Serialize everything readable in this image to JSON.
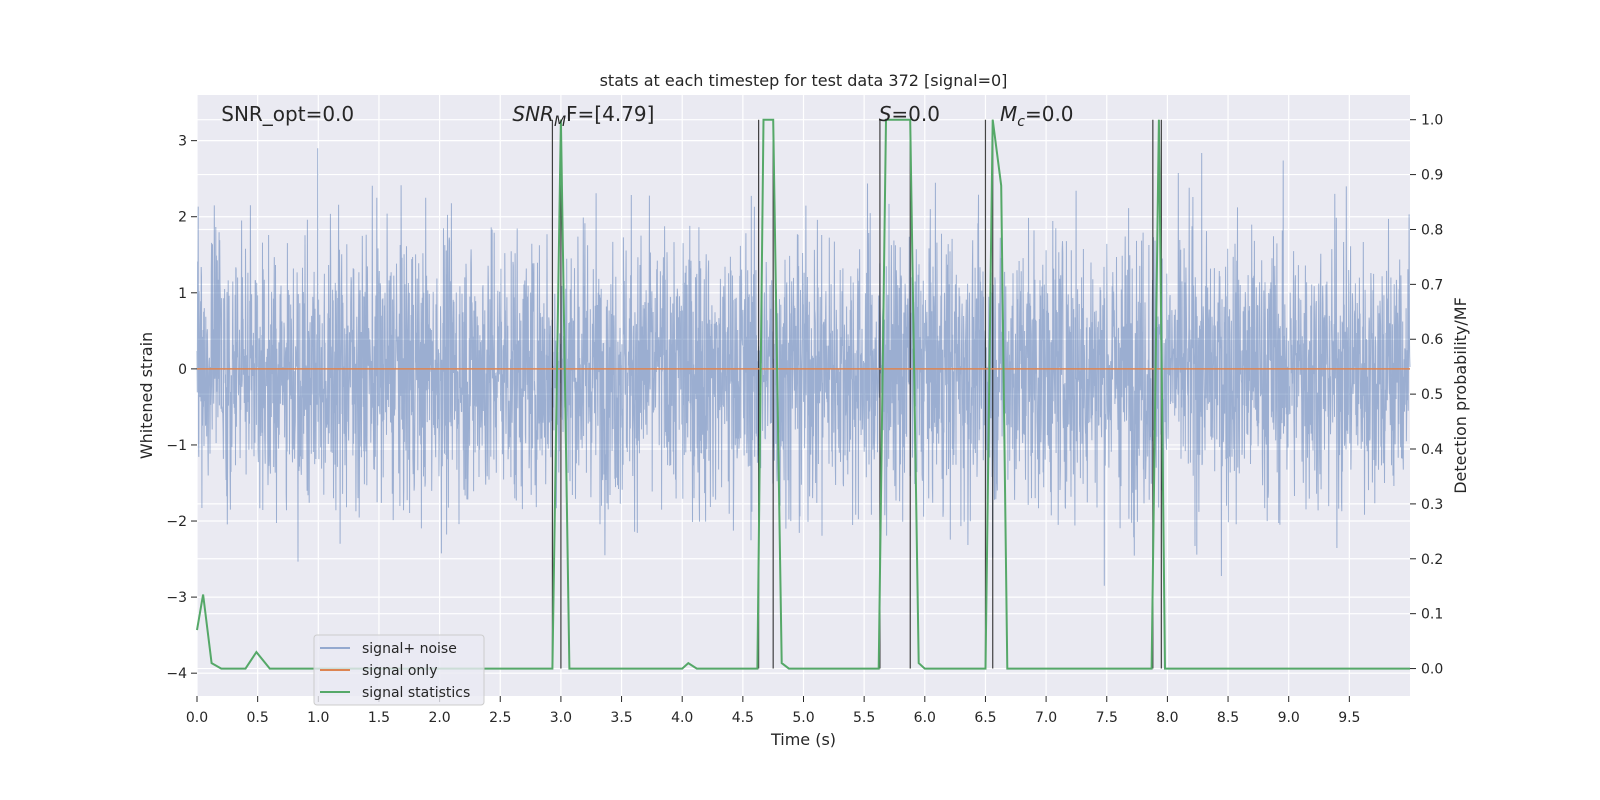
{
  "chart_data": {
    "type": "line",
    "title": "stats at each timestep for test data 372 [signal=0]",
    "xlabel": "Time (s)",
    "ylabel": "Whitened strain",
    "y2label": "Detection probability/MF",
    "xlim": [
      0.0,
      10.0
    ],
    "ylim": [
      -4.3,
      3.6
    ],
    "y2lim": [
      -0.05,
      1.045
    ],
    "x_ticks": [
      0.0,
      0.5,
      1.0,
      1.5,
      2.0,
      2.5,
      3.0,
      3.5,
      4.0,
      4.5,
      5.0,
      5.5,
      6.0,
      6.5,
      7.0,
      7.5,
      8.0,
      8.5,
      9.0,
      9.5
    ],
    "x_tick_labels": [
      "0.0",
      "0.5",
      "1.0",
      "1.5",
      "2.0",
      "2.5",
      "3.0",
      "3.5",
      "4.0",
      "4.5",
      "5.0",
      "5.5",
      "6.0",
      "6.5",
      "7.0",
      "7.5",
      "8.0",
      "8.5",
      "9.0",
      "9.5"
    ],
    "y_ticks": [
      -4,
      -3,
      -2,
      -1,
      0,
      1,
      2,
      3
    ],
    "y_tick_labels": [
      "−4",
      "−3",
      "−2",
      "−1",
      "0",
      "1",
      "2",
      "3"
    ],
    "y2_ticks": [
      0.0,
      0.1,
      0.2,
      0.3,
      0.4,
      0.5,
      0.6,
      0.7,
      0.8,
      0.9,
      1.0
    ],
    "y2_tick_labels": [
      "0.0",
      "0.1",
      "0.2",
      "0.3",
      "0.4",
      "0.5",
      "0.6",
      "0.7",
      "0.8",
      "0.9",
      "1.0"
    ],
    "grid": true,
    "legend_position": "lower-left",
    "series": [
      {
        "name": "signal+ noise",
        "color": "#4c72b0",
        "axis": "left",
        "kind": "noise",
        "sample_rate_per_s": 400,
        "std": 1.0,
        "envelope": [
          -4.1,
          3.5
        ]
      },
      {
        "name": "signal only",
        "color": "#dd8452",
        "axis": "left",
        "x": [
          0.0,
          10.0
        ],
        "y": [
          0.0,
          0.0
        ]
      },
      {
        "name": "signal statistics",
        "color": "#55a868",
        "axis": "right",
        "x": [
          0.0,
          0.05,
          0.12,
          0.2,
          0.3,
          0.4,
          0.49,
          0.6,
          0.7,
          1.0,
          2.0,
          2.93,
          3.0,
          3.07,
          3.5,
          4.0,
          4.05,
          4.12,
          4.5,
          4.62,
          4.67,
          4.75,
          4.82,
          4.88,
          5.0,
          5.62,
          5.68,
          5.88,
          5.95,
          6.0,
          6.5,
          6.56,
          6.63,
          6.68,
          7.0,
          7.87,
          7.93,
          7.98,
          8.5,
          9.0,
          9.5,
          10.0
        ],
        "y": [
          0.07,
          0.135,
          0.01,
          0.0,
          0.0,
          0.0,
          0.03,
          0.0,
          0.0,
          0.0,
          0.0,
          0.0,
          1.0,
          0.0,
          0.0,
          0.0,
          0.01,
          0.0,
          0.0,
          0.0,
          1.0,
          1.0,
          0.01,
          0.0,
          0.0,
          0.0,
          1.0,
          1.0,
          0.01,
          0.0,
          0.0,
          1.0,
          0.88,
          0.0,
          0.0,
          0.0,
          1.0,
          0.0,
          0.0,
          0.0,
          0.0,
          0.0
        ]
      }
    ],
    "dark_vlines": [
      2.93,
      3.0,
      4.63,
      4.75,
      5.63,
      5.88,
      6.5,
      6.56,
      7.88,
      7.95
    ],
    "dark_vline_color": "#222222",
    "annotations": [
      {
        "text": "SNR_opt=0.0",
        "x": 0.2
      },
      {
        "text": "SNR",
        "sub": "M",
        "tail": "F=[4.79]",
        "x": 2.6,
        "italic": true
      },
      {
        "text": "S",
        "tail": "=0.0",
        "x": 5.62,
        "italic": true
      },
      {
        "text": "M",
        "sub": "c",
        "tail": "=0.0",
        "x": 6.62,
        "italic": true
      }
    ]
  },
  "colors": {
    "plot_background": "#eaeaf2",
    "grid": "#ffffff",
    "text": "#262626"
  }
}
